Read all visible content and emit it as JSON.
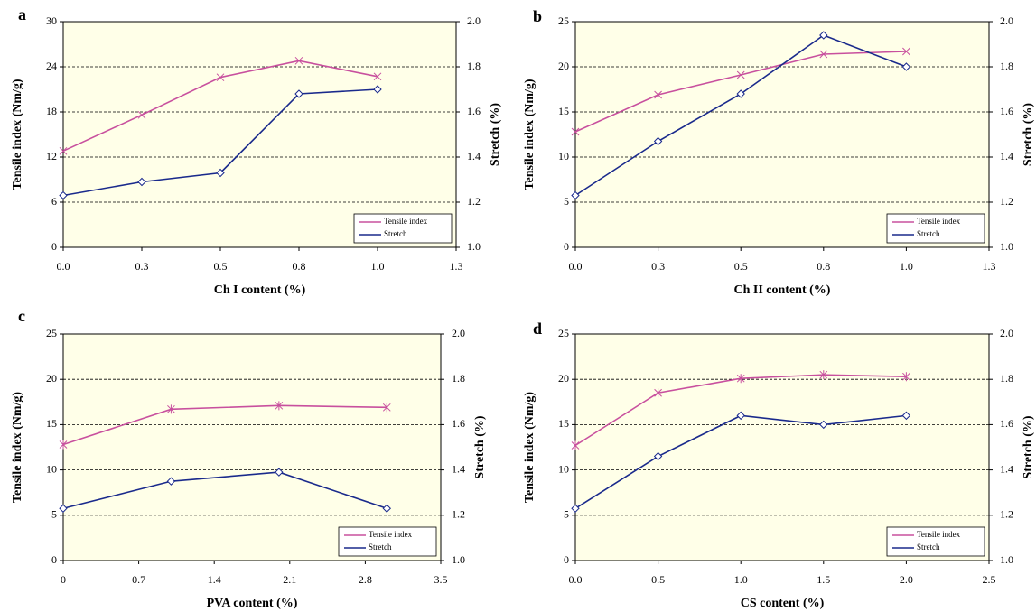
{
  "chart_data": [
    {
      "type": "line",
      "panel": "a",
      "x_label": "Ch I content (%)",
      "y_label": "Tensile index (Nm/g)",
      "y2_label": "Stretch (%)",
      "x": [
        0,
        0.25,
        0.5,
        0.75,
        1.0
      ],
      "xlim": [
        0,
        1.25
      ],
      "xticks": [
        {
          "value": 0,
          "label": "0.0"
        },
        {
          "value": 0.25,
          "label": "0.3"
        },
        {
          "value": 0.5,
          "label": "0.5"
        },
        {
          "value": 0.75,
          "label": "0.8"
        },
        {
          "value": 1.0,
          "label": "1.0"
        },
        {
          "value": 1.25,
          "label": "1.3"
        }
      ],
      "ylim": [
        0,
        30
      ],
      "yticks": [
        0,
        6,
        12,
        18,
        24,
        30
      ],
      "y2lim": [
        1.0,
        2.0
      ],
      "y2ticks": [
        {
          "value": 1.0,
          "label": "1.0"
        },
        1.2,
        1.4,
        1.6,
        1.8,
        {
          "value": 2.0,
          "label": "2.0"
        }
      ],
      "grid": true,
      "legend": "lower right",
      "series": [
        {
          "name": "Tensile index",
          "color": "#c8509e",
          "marker": "x",
          "values": [
            12.8,
            17.6,
            22.6,
            24.8,
            22.7
          ]
        },
        {
          "name": "Stretch",
          "color": "#1a2a8c",
          "marker": "diamond",
          "axis": "y2",
          "values": [
            1.23,
            1.29,
            1.33,
            1.68,
            1.7
          ]
        }
      ]
    },
    {
      "type": "line",
      "panel": "b",
      "x_label": "Ch II content (%)",
      "y_label": "Tensile index (Nm/g)",
      "y2_label": "Stretch (%)",
      "x": [
        0,
        0.25,
        0.5,
        0.75,
        1.0
      ],
      "xlim": [
        0,
        1.25
      ],
      "xticks": [
        {
          "value": 0,
          "label": "0.0"
        },
        {
          "value": 0.25,
          "label": "0.3"
        },
        {
          "value": 0.5,
          "label": "0.5"
        },
        {
          "value": 0.75,
          "label": "0.8"
        },
        {
          "value": 1.0,
          "label": "1.0"
        },
        {
          "value": 1.25,
          "label": "1.3"
        }
      ],
      "ylim": [
        0,
        25
      ],
      "yticks": [
        0,
        5,
        10,
        15,
        20,
        25
      ],
      "y2lim": [
        1.0,
        2.0
      ],
      "y2ticks": [
        {
          "value": 1.0,
          "label": "1.0"
        },
        1.2,
        1.4,
        1.6,
        1.8,
        {
          "value": 2.0,
          "label": "2.0"
        }
      ],
      "grid": true,
      "legend": "lower right",
      "series": [
        {
          "name": "Tensile index",
          "color": "#c8509e",
          "marker": "x",
          "values": [
            12.8,
            16.9,
            19.1,
            21.4,
            21.7
          ]
        },
        {
          "name": "Stretch",
          "color": "#1a2a8c",
          "marker": "diamond",
          "axis": "y2",
          "values": [
            1.23,
            1.47,
            1.68,
            1.94,
            1.8
          ]
        }
      ]
    },
    {
      "type": "line",
      "panel": "c",
      "x_label": "PVA content (%)",
      "y_label": "Tensile index (Nm/g)",
      "y2_label": "Stretch (%)",
      "x": [
        0,
        1,
        2,
        3
      ],
      "xlim": [
        0,
        3.5
      ],
      "xticks": [
        0,
        0.7,
        1.4,
        2.1,
        2.8,
        3.5
      ],
      "ylim": [
        0,
        25
      ],
      "yticks": [
        0,
        5,
        10,
        15,
        20,
        25
      ],
      "y2lim": [
        1.0,
        2.0
      ],
      "y2ticks": [
        {
          "value": 1.0,
          "label": "1.0"
        },
        1.2,
        1.4,
        1.6,
        1.8,
        {
          "value": 2.0,
          "label": "2.0"
        }
      ],
      "grid": true,
      "legend": "lower right",
      "series": [
        {
          "name": "Tensile index",
          "color": "#c8509e",
          "marker": "star",
          "values": [
            12.8,
            16.7,
            17.1,
            16.9
          ]
        },
        {
          "name": "Stretch",
          "color": "#1a2a8c",
          "marker": "diamond",
          "axis": "y2",
          "values": [
            1.23,
            1.35,
            1.39,
            1.23
          ]
        }
      ]
    },
    {
      "type": "line",
      "panel": "d",
      "x_label": "CS content (%)",
      "y_label": "Tensile index (Nm/g)",
      "y2_label": "Stretch (%)",
      "x": [
        0,
        0.5,
        1.0,
        1.5,
        2.0
      ],
      "xlim": [
        0,
        2.5
      ],
      "xticks": [
        {
          "value": 0,
          "label": "0.0"
        },
        0.5,
        {
          "value": 1.0,
          "label": "1.0"
        },
        1.5,
        {
          "value": 2.0,
          "label": "2.0"
        },
        2.5
      ],
      "ylim": [
        0,
        25
      ],
      "yticks": [
        0,
        5,
        10,
        15,
        20,
        25
      ],
      "y2lim": [
        1.0,
        2.0
      ],
      "y2ticks": [
        {
          "value": 1.0,
          "label": "1.0"
        },
        1.2,
        1.4,
        1.6,
        1.8,
        {
          "value": 2.0,
          "label": "2.0"
        }
      ],
      "grid": true,
      "legend": "lower right",
      "series": [
        {
          "name": "Tensile index",
          "color": "#c8509e",
          "marker": "star",
          "values": [
            12.7,
            18.5,
            20.1,
            20.5,
            20.3
          ]
        },
        {
          "name": "Stretch",
          "color": "#1a2a8c",
          "marker": "diamond",
          "axis": "y2",
          "values": [
            1.23,
            1.46,
            1.64,
            1.6,
            1.64
          ]
        }
      ]
    }
  ]
}
